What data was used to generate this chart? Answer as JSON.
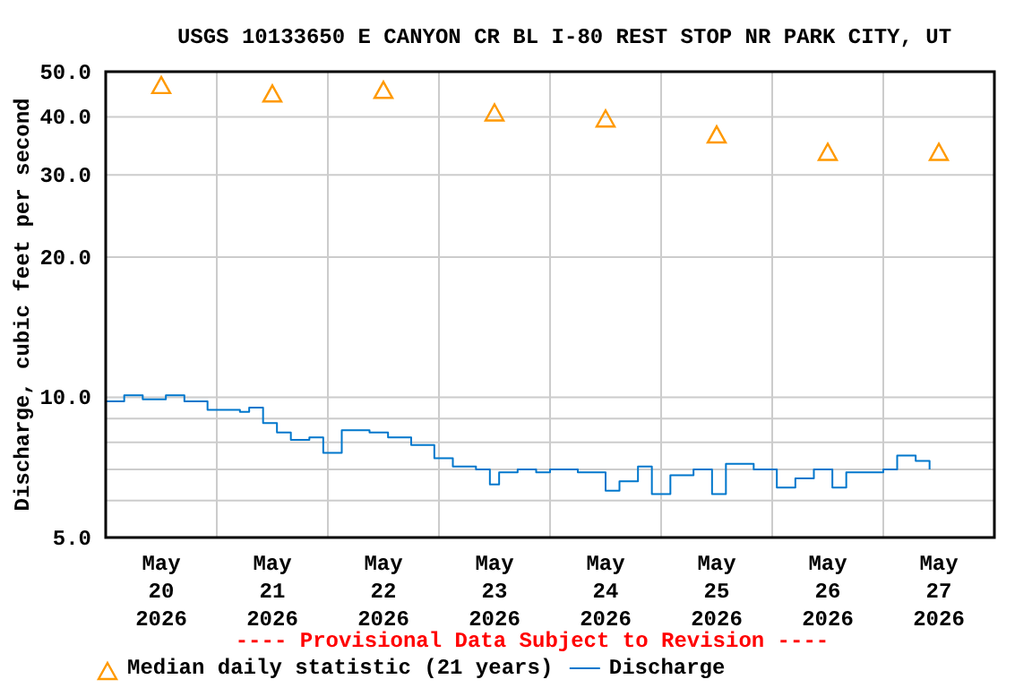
{
  "chart_data": {
    "type": "step",
    "title": "USGS 10133650 E CANYON CR BL I-80 REST STOP NR PARK CITY, UT",
    "ylabel": "Discharge, cubic feet per second",
    "annotations": [
      "---- Provisional Data Subject to Revision ----"
    ],
    "log": "y",
    "grid": true,
    "legend": "bottom",
    "xlim": [
      "2026-05-20T00:00",
      "2026-05-28T00:00"
    ],
    "xticks": [
      {
        "value": "2026-05-20T00:00",
        "label": null
      },
      {
        "value": "2026-05-20T12:00",
        "label": "May\n20\n2026"
      },
      {
        "value": "2026-05-21T00:00",
        "label": null
      },
      {
        "value": "2026-05-21T12:00",
        "label": "May\n21\n2026"
      },
      {
        "value": "2026-05-22T00:00",
        "label": null
      },
      {
        "value": "2026-05-22T12:00",
        "label": "May\n22\n2026"
      },
      {
        "value": "2026-05-23T00:00",
        "label": null
      },
      {
        "value": "2026-05-23T12:00",
        "label": "May\n23\n2026"
      },
      {
        "value": "2026-05-24T00:00",
        "label": null
      },
      {
        "value": "2026-05-24T12:00",
        "label": "May\n24\n2026"
      },
      {
        "value": "2026-05-25T00:00",
        "label": null
      },
      {
        "value": "2026-05-25T12:00",
        "label": "May\n25\n2026"
      },
      {
        "value": "2026-05-26T00:00",
        "label": null
      },
      {
        "value": "2026-05-26T12:00",
        "label": "May\n26\n2026"
      },
      {
        "value": "2026-05-27T00:00",
        "label": null
      },
      {
        "value": "2026-05-27T12:00",
        "label": "May\n27\n2026"
      },
      {
        "value": "2026-05-28T00:00",
        "label": null
      }
    ],
    "ylim": [
      5,
      50
    ],
    "yticks": [
      {
        "value": 5,
        "label": "5.0"
      },
      {
        "value": 6,
        "label": null
      },
      {
        "value": 7,
        "label": null
      },
      {
        "value": 8,
        "label": null
      },
      {
        "value": 9,
        "label": null
      },
      {
        "value": 10,
        "label": "10.0"
      },
      {
        "value": 20,
        "label": "20.0"
      },
      {
        "value": 30,
        "label": "30.0"
      },
      {
        "value": 40,
        "label": "40.0"
      },
      {
        "value": 50,
        "label": "50.0"
      }
    ],
    "series": [
      {
        "name": "Median daily statistic (21 years)",
        "type": "scatter",
        "marker": "triangle",
        "color": "#ff9900",
        "x": [
          "2026-05-20T12:00",
          "2026-05-21T12:00",
          "2026-05-22T12:00",
          "2026-05-23T12:00",
          "2026-05-24T12:00",
          "2026-05-25T12:00",
          "2026-05-26T12:00",
          "2026-05-27T12:00"
        ],
        "values": [
          46.6,
          44.7,
          45.5,
          40.7,
          39.5,
          36.5,
          33.5,
          33.5
        ]
      },
      {
        "name": "Discharge",
        "color": "#0077cc",
        "x": [
          "2026-05-20T00:00",
          "2026-05-20T04:00",
          "2026-05-20T08:00",
          "2026-05-20T13:00",
          "2026-05-20T17:00",
          "2026-05-20T20:00",
          "2026-05-20T22:00",
          "2026-05-21T05:00",
          "2026-05-21T07:00",
          "2026-05-21T10:00",
          "2026-05-21T13:00",
          "2026-05-21T16:00",
          "2026-05-21T20:00",
          "2026-05-21T23:00",
          "2026-05-22T02:00",
          "2026-05-22T03:00",
          "2026-05-22T09:00",
          "2026-05-22T13:00",
          "2026-05-22T18:00",
          "2026-05-22T23:00",
          "2026-05-23T03:00",
          "2026-05-23T08:00",
          "2026-05-23T11:00",
          "2026-05-23T13:00",
          "2026-05-23T17:00",
          "2026-05-23T21:00",
          "2026-05-24T00:00",
          "2026-05-24T06:00",
          "2026-05-24T12:00",
          "2026-05-24T15:00",
          "2026-05-24T19:00",
          "2026-05-24T22:00",
          "2026-05-25T02:00",
          "2026-05-25T07:00",
          "2026-05-25T11:00",
          "2026-05-25T14:00",
          "2026-05-25T20:00",
          "2026-05-26T01:00",
          "2026-05-26T05:00",
          "2026-05-26T09:00",
          "2026-05-26T13:00",
          "2026-05-26T16:00",
          "2026-05-27T00:00",
          "2026-05-27T03:00",
          "2026-05-27T07:00",
          "2026-05-27T10:00"
        ],
        "values": [
          9.8,
          10.1,
          9.9,
          10.1,
          9.8,
          9.8,
          9.4,
          9.3,
          9.5,
          8.8,
          8.4,
          8.1,
          8.2,
          7.6,
          7.6,
          8.5,
          8.4,
          8.2,
          7.9,
          7.4,
          7.1,
          7.0,
          6.5,
          6.9,
          7.0,
          6.9,
          7.0,
          6.9,
          6.3,
          6.6,
          7.1,
          6.2,
          6.8,
          7.0,
          6.2,
          7.2,
          7.0,
          6.4,
          6.7,
          7.0,
          6.4,
          6.9,
          7.0,
          7.5,
          7.3,
          7.0
        ]
      }
    ]
  }
}
